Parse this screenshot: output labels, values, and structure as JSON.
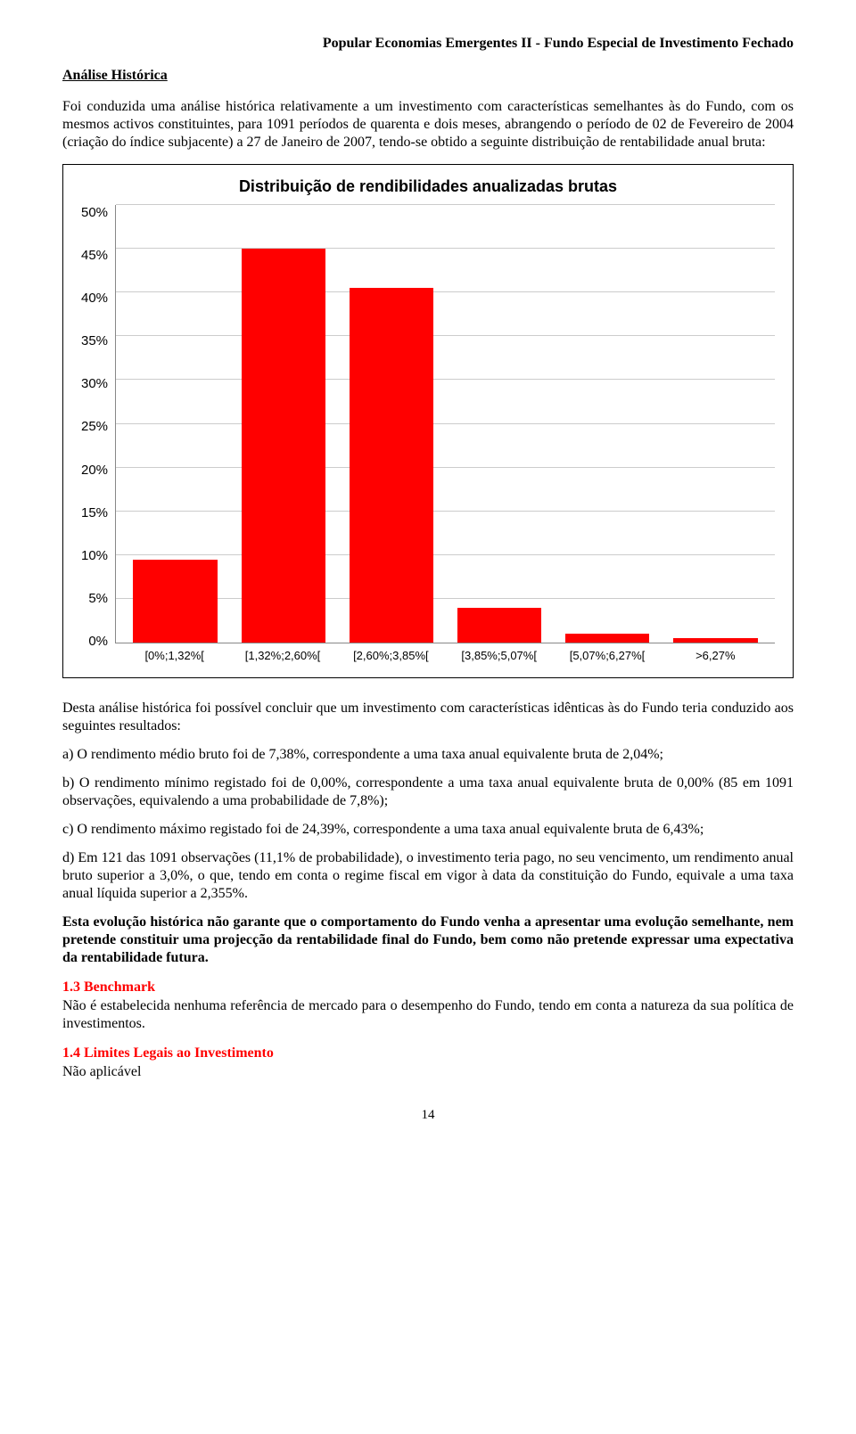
{
  "header": "Popular Economias Emergentes II - Fundo Especial de Investimento Fechado",
  "section_title": "Análise Histórica",
  "intro_para": "Foi conduzida uma análise histórica relativamente a um investimento com características semelhantes às do Fundo, com os mesmos activos constituintes, para 1091 períodos de quarenta e dois meses, abrangendo o período de 02 de Fevereiro de 2004 (criação do índice subjacente) a 27 de Janeiro de 2007, tendo-se obtido a seguinte distribuição de rentabilidade anual bruta:",
  "chart": {
    "type": "bar",
    "title": "Distribuição de rendibilidades anualizadas brutas",
    "categories": [
      "[0%;1,32%[",
      "[1,32%;2,60%[",
      "[2,60%;3,85%[",
      "[3,85%;5,07%[",
      "[5,07%;6,27%[",
      ">6,27%"
    ],
    "values": [
      9.5,
      45,
      40.5,
      4,
      1,
      0.5
    ],
    "bar_color": "#ff0000",
    "ylim": [
      0,
      50
    ],
    "ytick_step": 5,
    "y_tick_labels": [
      "50%",
      "45%",
      "40%",
      "35%",
      "30%",
      "25%",
      "20%",
      "15%",
      "10%",
      "5%",
      "0%"
    ],
    "background_color": "#ffffff",
    "grid_color": "#cccccc",
    "title_fontsize": 18,
    "label_fontsize": 15,
    "xlabel_fontsize": 13,
    "bar_width_pct": 13.0
  },
  "after_chart_para": "Desta análise histórica foi possível concluir que um investimento com características idênticas às do Fundo teria conduzido aos seguintes resultados:",
  "bullets": {
    "a": "a) O rendimento médio bruto foi de 7,38%, correspondente a uma taxa anual equivalente bruta de 2,04%;",
    "b": "b) O rendimento mínimo registado foi de 0,00%, correspondente a uma taxa anual equivalente bruta de 0,00% (85 em 1091 observações, equivalendo a uma probabilidade de 7,8%);",
    "c": "c) O rendimento máximo registado foi de 24,39%, correspondente a uma taxa anual equivalente bruta de 6,43%;",
    "d": "d) Em 121 das 1091 observações (11,1% de probabilidade), o investimento teria pago, no seu vencimento, um rendimento anual bruto superior a 3,0%, o que, tendo em conta o regime fiscal em vigor à data da constituição do Fundo, equivale a uma taxa anual líquida superior a 2,355%."
  },
  "bold_para": "Esta evolução histórica não garante que o comportamento do Fundo venha a apresentar uma evolução semelhante, nem pretende constituir uma projecção da rentabilidade final do Fundo, bem como não pretende expressar uma expectativa da rentabilidade futura.",
  "sec_benchmark": {
    "heading": "1.3  Benchmark",
    "body": "Não é estabelecida nenhuma referência de mercado para o desempenho do Fundo, tendo em conta a natureza da sua política de investimentos."
  },
  "sec_limits": {
    "heading": "1.4  Limites Legais ao Investimento",
    "body": "Não aplicável"
  },
  "page_number": "14"
}
